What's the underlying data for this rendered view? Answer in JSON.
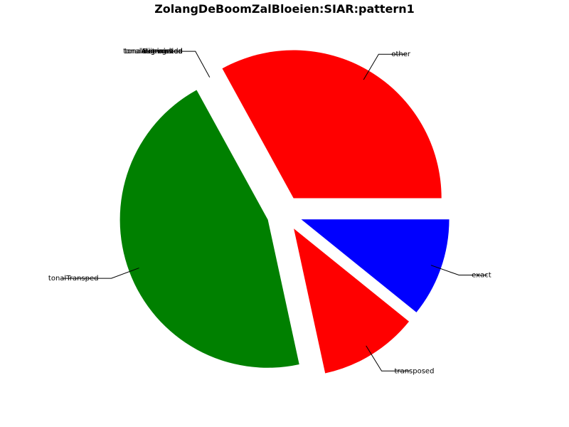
{
  "chart_data": {
    "type": "pie",
    "title": "ZolangDeBoomZalBloeien:SIAR:pattern1",
    "slices": [
      {
        "label": "exact",
        "value": 10.8,
        "color": "#0000ff",
        "exploded": true
      },
      {
        "label": "transposed",
        "value": 10.8,
        "color": "#ff0000",
        "exploded": true
      },
      {
        "label": "tonalTransped",
        "value": 45.4,
        "color": "#008000",
        "exploded": true
      },
      {
        "label": "",
        "value": 0,
        "color": "#000000",
        "exploded": true
      },
      {
        "label": "other",
        "value": 33.0,
        "color": "#ff0000",
        "exploded": true
      }
    ],
    "overlapping_labels": [
      "tonalAugmented",
      "tonalDiminished",
      "augmented",
      "diminished",
      "retrograde",
      "inversion"
    ],
    "start_angle_deg": 0,
    "direction": "clockwise",
    "legend": "none"
  }
}
